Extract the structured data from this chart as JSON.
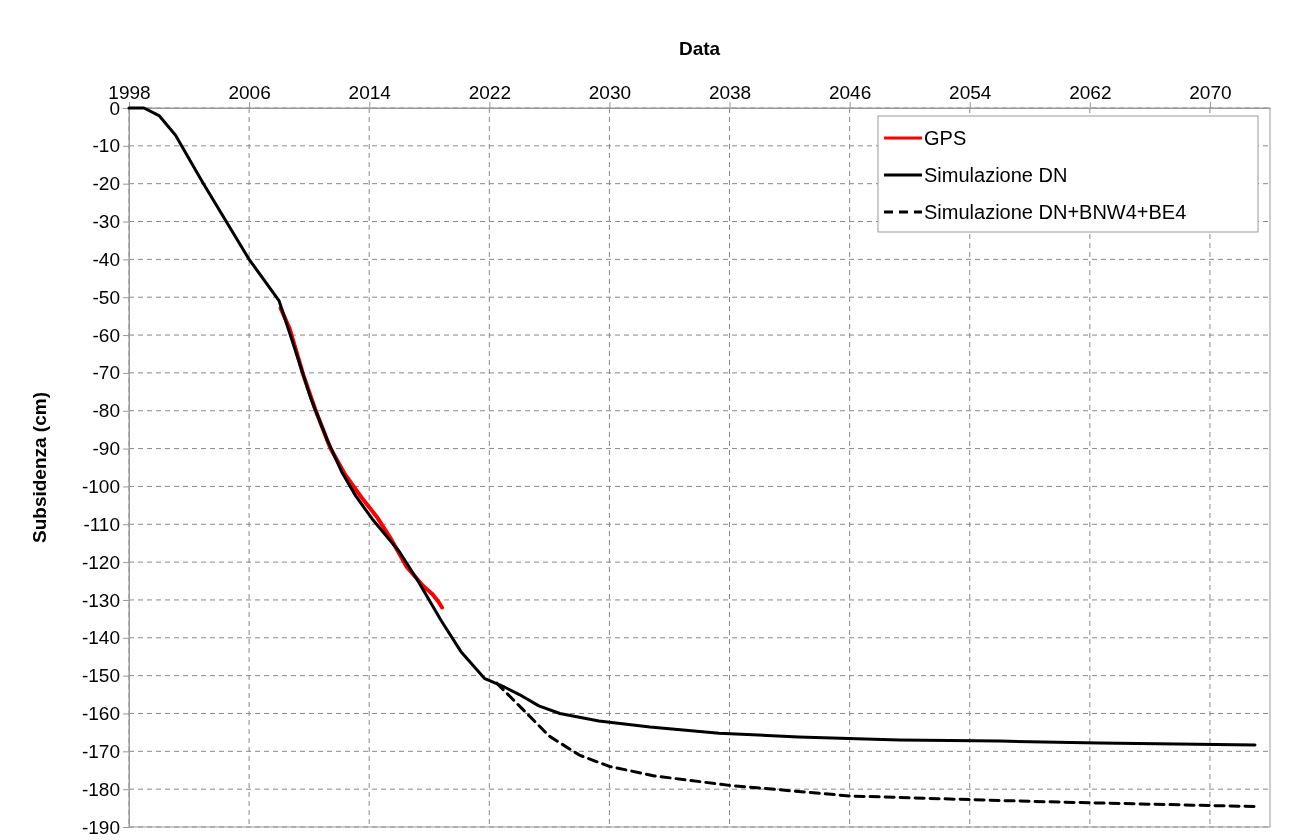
{
  "chart_data": {
    "type": "line",
    "xlabel": "Data",
    "ylabel": "Subsidenza (cm)",
    "xlim": [
      1998,
      2074
    ],
    "xticks": [
      1998,
      2006,
      2014,
      2022,
      2030,
      2038,
      2046,
      2054,
      2062,
      2070
    ],
    "ylim": [
      -190,
      0
    ],
    "yticks": [
      0,
      -10,
      -20,
      -30,
      -40,
      -50,
      -60,
      -70,
      -80,
      -90,
      -100,
      -110,
      -120,
      -130,
      -140,
      -150,
      -160,
      -170,
      -180,
      -190
    ],
    "grid": true,
    "legend": "top right",
    "marker": "none",
    "series": [
      {
        "name": "GPS",
        "color": "#ff0000",
        "line_style": "solid",
        "x": [
          2008.1,
          2008.7,
          2009.6,
          2010.4,
          2011.4,
          2012.4,
          2013.5,
          2014.5,
          2015.5,
          2016.5,
          2017.6,
          2018.2,
          2018.6,
          2018.85
        ],
        "values": [
          -52.9,
          -58.3,
          -70.4,
          -79.6,
          -89.8,
          -96.9,
          -103,
          -108,
          -114.2,
          -121.3,
          -126.3,
          -128.4,
          -130.4,
          -132
        ]
      },
      {
        "name": "Simulazione DN",
        "color": "#000000",
        "line_style": "solid",
        "x": [
          1998,
          1999,
          2000,
          2001.1,
          2002.9,
          2006,
          2008,
          2009.1,
          2010.1,
          2011.2,
          2012.2,
          2013.1,
          2014.2,
          2016,
          2017.3,
          2018.8,
          2020.1,
          2021.7,
          2023,
          2024,
          2025.3,
          2026.7,
          2029.3,
          2032.7,
          2037.3,
          2042.6,
          2049.3,
          2056,
          2062.6,
          2073
        ],
        "values": [
          0,
          0,
          -2,
          -7.2,
          -19.6,
          -40,
          -51,
          -64.3,
          -76.6,
          -87.7,
          -96.4,
          -102.5,
          -108.6,
          -117.2,
          -125.3,
          -135.5,
          -143.6,
          -150.8,
          -153,
          -155,
          -158,
          -160,
          -162,
          -163.6,
          -165.2,
          -166.2,
          -167,
          -167.3,
          -167.8,
          -168.3
        ]
      },
      {
        "name": "Simulazione DN+BNW4+BE4",
        "color": "#000000",
        "line_style": "dashed",
        "x": [
          2022.5,
          2023,
          2024,
          2025,
          2026,
          2028,
          2030,
          2033,
          2038,
          2046,
          2056,
          2062,
          2073
        ],
        "values": [
          -152,
          -154,
          -158,
          -162,
          -166,
          -171,
          -174,
          -176.5,
          -179,
          -181.8,
          -183,
          -183.6,
          -184.6
        ]
      }
    ]
  }
}
